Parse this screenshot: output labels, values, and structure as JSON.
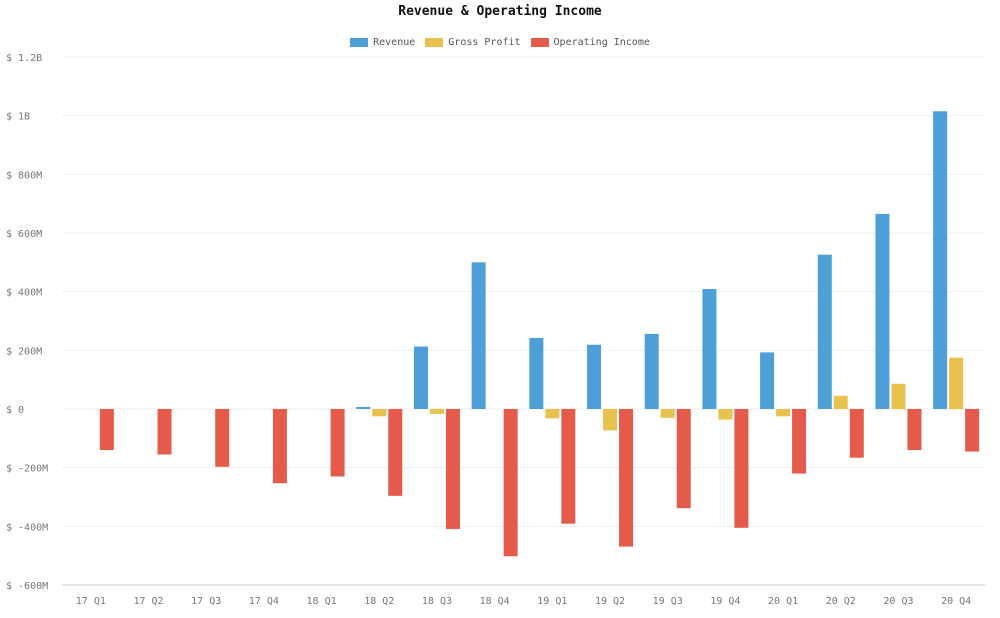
{
  "chart_data": {
    "type": "bar",
    "title": "Revenue & Operating Income",
    "xlabel": "",
    "ylabel": "",
    "legend_position": "top-center",
    "grid": true,
    "categories": [
      "17 Q1",
      "17 Q2",
      "17 Q3",
      "17 Q4",
      "18 Q1",
      "18 Q2",
      "18 Q3",
      "18 Q4",
      "19 Q1",
      "19 Q2",
      "19 Q3",
      "19 Q4",
      "20 Q1",
      "20 Q2",
      "20 Q3",
      "20 Q4"
    ],
    "y_ticks": [
      {
        "value": 1200,
        "label": "$ 1.2B"
      },
      {
        "value": 1000,
        "label": "$ 1B"
      },
      {
        "value": 800,
        "label": "$ 800M"
      },
      {
        "value": 600,
        "label": "$ 600M"
      },
      {
        "value": 400,
        "label": "$ 400M"
      },
      {
        "value": 200,
        "label": "$ 200M"
      },
      {
        "value": 0,
        "label": "$ 0"
      },
      {
        "value": -200,
        "label": "$ -200M"
      },
      {
        "value": -400,
        "label": "$ -400M"
      },
      {
        "value": -600,
        "label": "$ -600M"
      }
    ],
    "ylim": [
      -600,
      1200
    ],
    "value_unit": "millions USD",
    "series": [
      {
        "name": "Revenue",
        "color": "#4e9fd8",
        "values": [
          0,
          0,
          0,
          0,
          0,
          7,
          213,
          500,
          242,
          219,
          256,
          409,
          193,
          526,
          665,
          1015
        ]
      },
      {
        "name": "Gross Profit",
        "color": "#e8c24e",
        "values": [
          0,
          0,
          0,
          0,
          0,
          -25,
          -17,
          0,
          -32,
          -73,
          -30,
          -36,
          -25,
          45,
          86,
          175
        ]
      },
      {
        "name": "Operating Income",
        "color": "#e45b4b",
        "values": [
          -140,
          -155,
          -197,
          -253,
          -230,
          -296,
          -409,
          -502,
          -391,
          -469,
          -338,
          -405,
          -220,
          -166,
          -140,
          -145
        ]
      }
    ]
  }
}
